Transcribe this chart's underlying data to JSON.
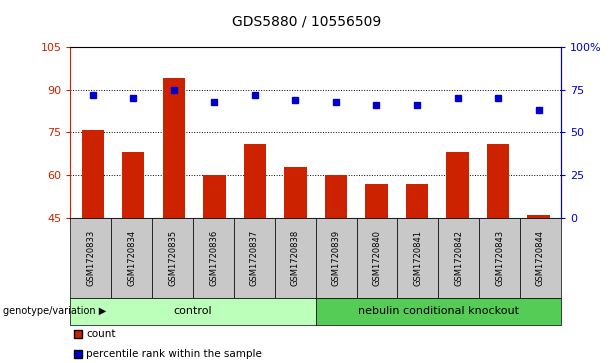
{
  "title": "GDS5880 / 10556509",
  "samples": [
    "GSM1720833",
    "GSM1720834",
    "GSM1720835",
    "GSM1720836",
    "GSM1720837",
    "GSM1720838",
    "GSM1720839",
    "GSM1720840",
    "GSM1720841",
    "GSM1720842",
    "GSM1720843",
    "GSM1720844"
  ],
  "count_values": [
    76,
    68,
    94,
    60,
    71,
    63,
    60,
    57,
    57,
    68,
    71,
    46
  ],
  "percentile_values": [
    72,
    70,
    75,
    68,
    72,
    69,
    68,
    66,
    66,
    70,
    70,
    63
  ],
  "ylim_left": [
    45,
    105
  ],
  "ylim_right": [
    0,
    100
  ],
  "yticks_left": [
    45,
    60,
    75,
    90,
    105
  ],
  "ytick_labels_left": [
    "45",
    "60",
    "75",
    "90",
    "105"
  ],
  "yticks_right": [
    0,
    25,
    50,
    75,
    100
  ],
  "ytick_labels_right": [
    "0",
    "25",
    "50",
    "75",
    "100%"
  ],
  "bar_color": "#cc2200",
  "dot_color": "#0000cc",
  "grid_lines": [
    60,
    75,
    90
  ],
  "control_samples": 6,
  "control_label": "control",
  "knockout_label": "nebulin conditional knockout",
  "control_color": "#bbffbb",
  "knockout_color": "#55cc55",
  "label_row_color": "#c8c8c8",
  "genotype_label": "genotype/variation",
  "legend_count": "count",
  "legend_percentile": "percentile rank within the sample",
  "title_fontsize": 10,
  "tick_fontsize": 8,
  "sample_fontsize": 6
}
